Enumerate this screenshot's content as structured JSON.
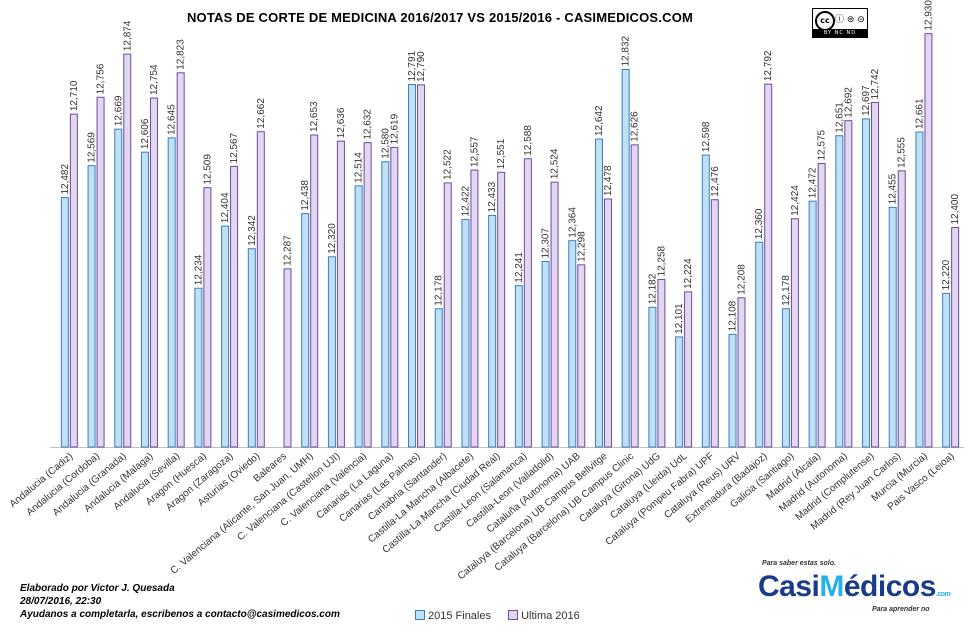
{
  "chart_data": {
    "type": "bar",
    "title": "NOTAS DE CORTE DE MEDICINA 2016/2017  VS 2015/2016  - CASIMEDICOS.COM",
    "categories": [
      "Andalucia (Cadiz)",
      "Andalucia (Cordoba)",
      "Andalucia (Granada)",
      "Andalucia (Malaga)",
      "Andalucia (Sevilla)",
      "Aragon (Huesca)",
      "Aragon (Zaragoza)",
      "Asturias (Oviedo)",
      "Baleares",
      "C. Valenciana (Alicante, San Juan, UMH)",
      "C. Valenciana (Castellon UJI)",
      "C. Valenciana (Valencia)",
      "Canarias (La Laguna)",
      "Canarias (Las Palmas)",
      "Cantabria (Santander)",
      "Castilla-La Mancha (Albacete)",
      "Castilla-La Mancha (Ciudad Real)",
      "Castilla-Leon (Salamanca)",
      "Castilla-Leon (Valladolid)",
      "Cataluña (Autonoma) UAB",
      "Cataluya (Barcelona) UB Campus Bellvitge",
      "Cataluya (Barcelona) UB Campus Clinic",
      "Cataluya (Girona) UdG",
      "Cataluya (Lleida) UdL",
      "Cataluya (Pompeu Fabra) UPF",
      "Cataluya (Reus) URV",
      "Extremadura (Badajoz)",
      "Galicia (Santiago)",
      "Madrid (Alcala)",
      "Madrid (Autonoma)",
      "Madrid (Complutense)",
      "Madrid (Rey Juan Carlos)",
      "Murcia (Murcia)",
      "Pais Vasco (Leioa)"
    ],
    "series": [
      {
        "name": "2015 Finales",
        "values": [
          12.482,
          12.569,
          12.669,
          12.606,
          12.645,
          12.234,
          12.404,
          12.342,
          null,
          12.438,
          12.32,
          12.514,
          12.58,
          12.791,
          12.178,
          12.422,
          12.433,
          12.241,
          12.307,
          12.364,
          12.642,
          12.832,
          12.182,
          12.101,
          12.598,
          12.108,
          12.36,
          12.178,
          12.472,
          12.651,
          12.697,
          12.455,
          12.661,
          12.22
        ]
      },
      {
        "name": "Ultima 2016",
        "values": [
          12.71,
          12.756,
          12.874,
          12.754,
          12.823,
          12.509,
          12.567,
          12.662,
          12.287,
          12.653,
          12.636,
          12.632,
          12.619,
          12.79,
          12.522,
          12.557,
          12.551,
          12.588,
          12.524,
          12.298,
          12.478,
          12.626,
          12.258,
          12.224,
          12.476,
          12.208,
          12.792,
          12.424,
          12.575,
          12.692,
          12.742,
          12.555,
          12.93,
          12.4
        ]
      }
    ],
    "ylim": [
      11.8,
      12.94
    ],
    "grid": false,
    "legend": "bottom",
    "colors": {
      "series_2015": "#bfe0f7",
      "series_2015_edge": "#3a7fbd",
      "series_2016": "#e2d6f0",
      "series_2016_edge": "#6a4c9c",
      "value_label": "#333333",
      "axis": "#bfbfbf"
    }
  },
  "footer": {
    "credit_line1": "Elaborado por Victor J. Quesada",
    "credit_line2": "28/07/2016, 22:30",
    "credit_line3": " Ayudanos a completarla, escribenos a contacto@casimedicos.com"
  },
  "license_badge": {
    "symbol": "cc",
    "icons": "ⓘ ⊜ ⊝",
    "text": "BY  NC  ND"
  },
  "logo": {
    "tagline_top": "Para saber estas solo.",
    "brand_prefix": "Casi",
    "brand_accent": "M",
    "brand_suffix": "édicos",
    "brand_domain": ".com",
    "tagline_bottom": "Para aprender no"
  }
}
